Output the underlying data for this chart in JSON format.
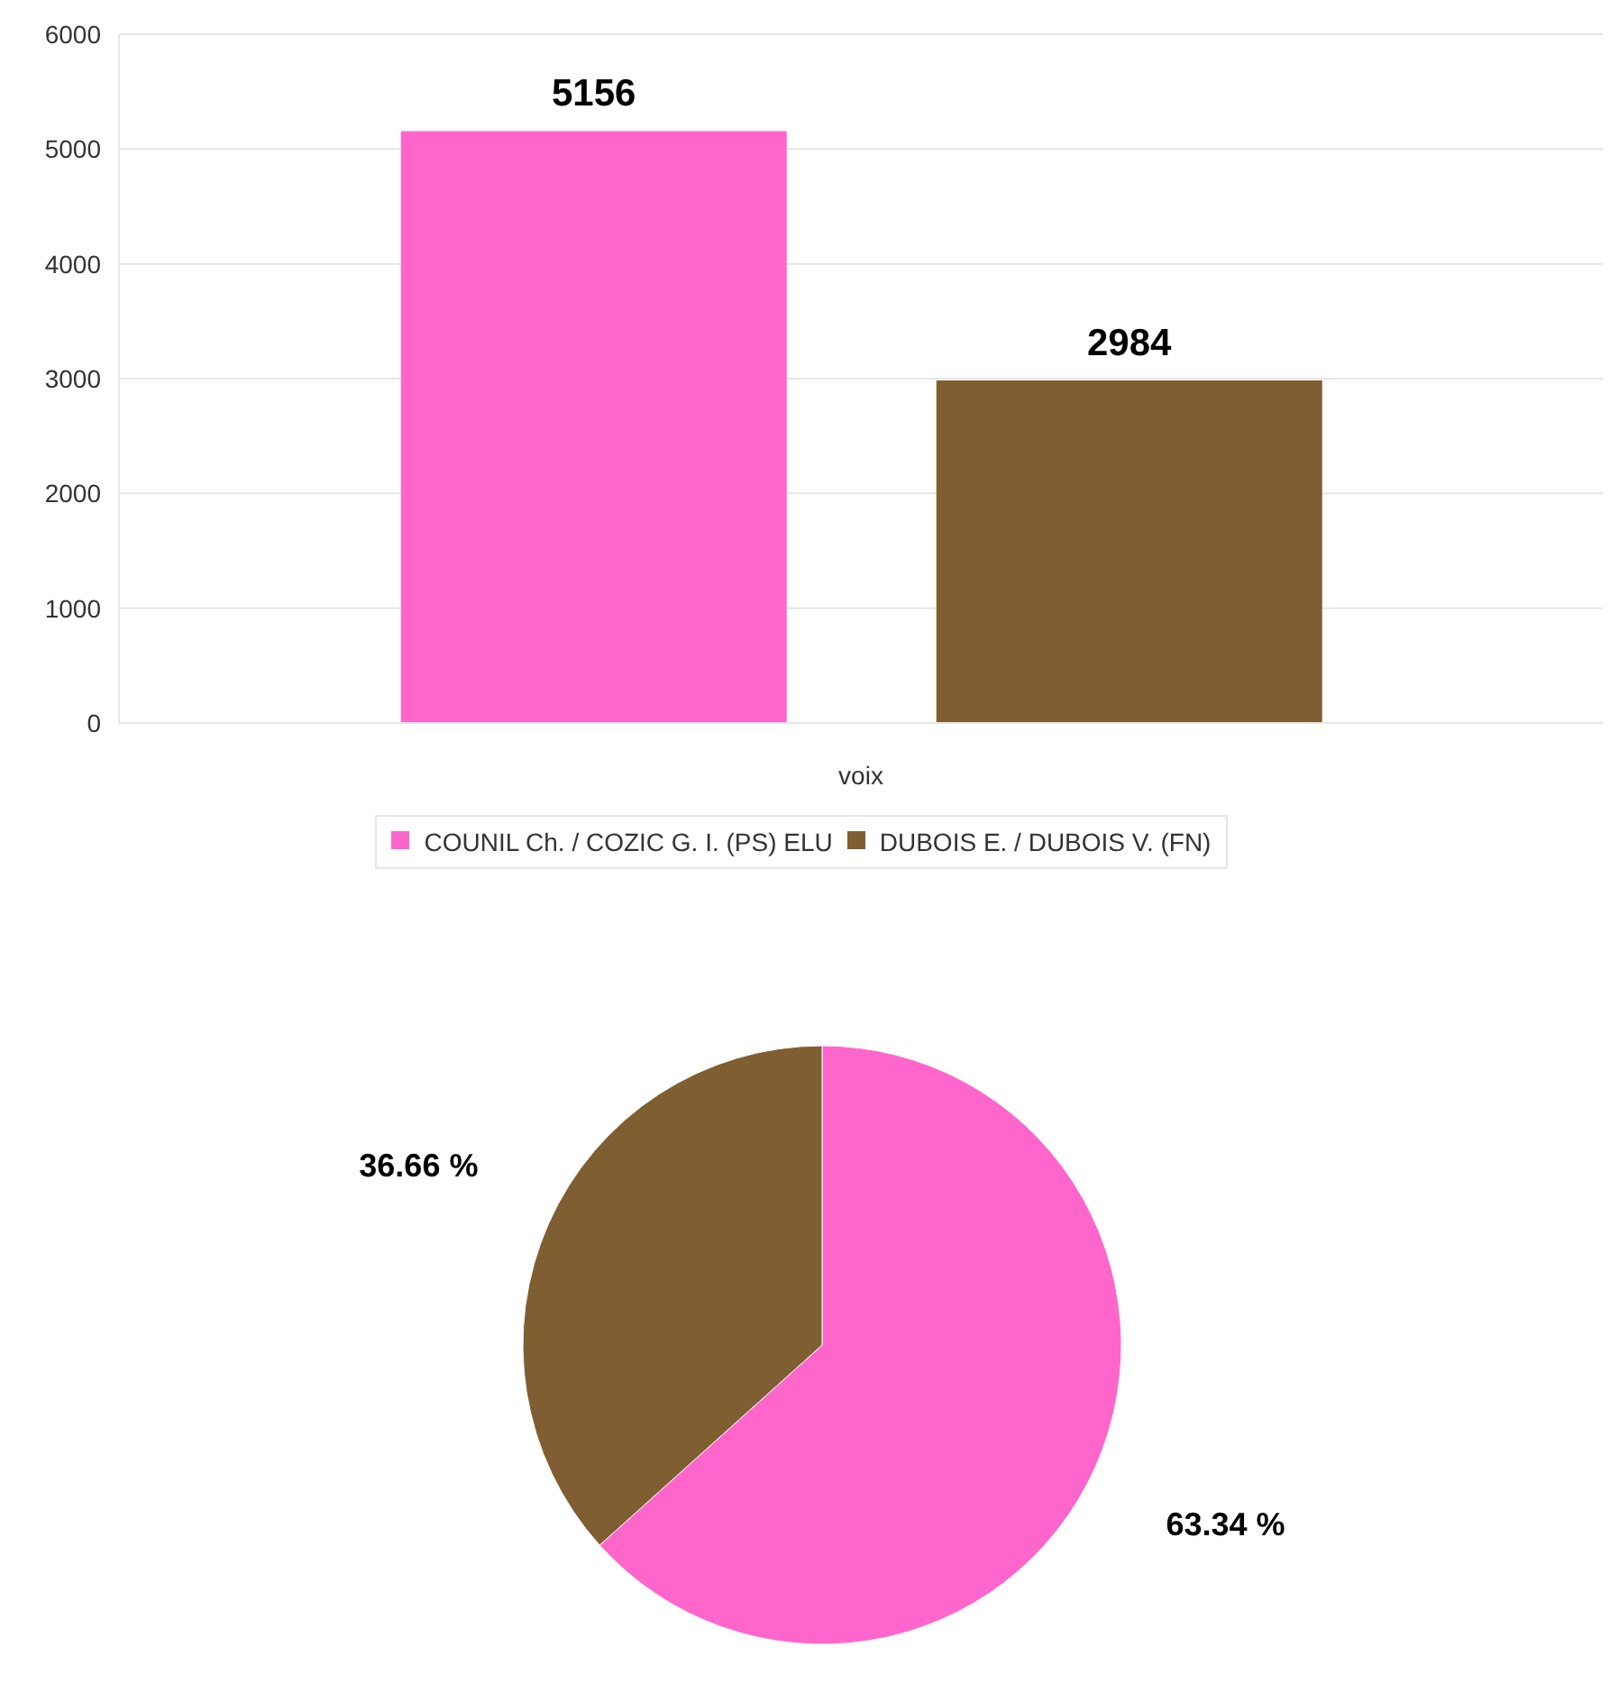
{
  "chart_data": [
    {
      "type": "bar",
      "categories": [
        "voix"
      ],
      "series": [
        {
          "name": "COUNIL Ch. / COZIC G. I. (PS) ELU",
          "color": "#ff66cc",
          "values": [
            5156
          ]
        },
        {
          "name": "DUBOIS E. / DUBOIS V. (FN)",
          "color": "#7f5f32",
          "values": [
            2984
          ]
        }
      ],
      "ylim": [
        0,
        6000
      ],
      "yticks": [
        0,
        1000,
        2000,
        3000,
        4000,
        5000,
        6000
      ],
      "grid": "y",
      "legend": "bottom",
      "data_labels": true
    },
    {
      "type": "pie",
      "categories": [
        null,
        null
      ],
      "values": [
        63.34,
        36.66
      ],
      "colors": [
        "#ff66cc",
        "#7f5f32"
      ],
      "value_labels": [
        "63.34 %",
        "36.66 %"
      ]
    }
  ]
}
